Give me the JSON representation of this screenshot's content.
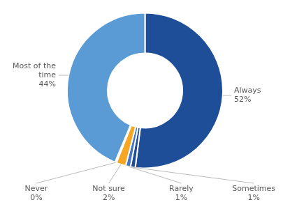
{
  "chart_data": {
    "type": "doughnut",
    "categories": [
      "Always",
      "Sometimes",
      "Rarely",
      "Not sure",
      "Never",
      "Most of the\ntime"
    ],
    "values": [
      52,
      1,
      1,
      2,
      0.3,
      43.7
    ],
    "value_labels": [
      "52%",
      "1%",
      "1%",
      "2%",
      "0%",
      "44%"
    ],
    "colors": [
      "#1f4e99",
      "#1f4e99",
      "#4472c4",
      "#f5a623",
      "#4472c4",
      "#5b9bd5"
    ],
    "data_labels": true
  }
}
